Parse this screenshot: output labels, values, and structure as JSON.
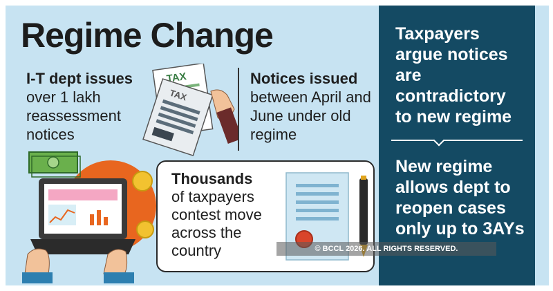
{
  "title": "Regime Change",
  "issue": {
    "lead": "I-T dept issues",
    "body": "over 1 lakh reassessment notices"
  },
  "notices": {
    "lead": "Notices issued",
    "body": "between April and June under old regime"
  },
  "contest": {
    "lead": "Thousands",
    "body": "of taxpayers contest move across the country"
  },
  "sidebar": {
    "point1": "Taxpayers argue notices are contradictory to new regime",
    "point2": "New regime allows dept to reopen cases only up to 3AYs"
  },
  "illustration": {
    "tax_doc_label": "TAX",
    "tax_doc_label_2": "TAX"
  },
  "copyright": "© BCCL 2026. ALL RIGHTS RESERVED.",
  "colors": {
    "panel_bg": "#c7e3f2",
    "sidebar_bg": "#144a63",
    "orange": "#e8661f",
    "yellow": "#f2c230",
    "green": "#6ab04c"
  }
}
